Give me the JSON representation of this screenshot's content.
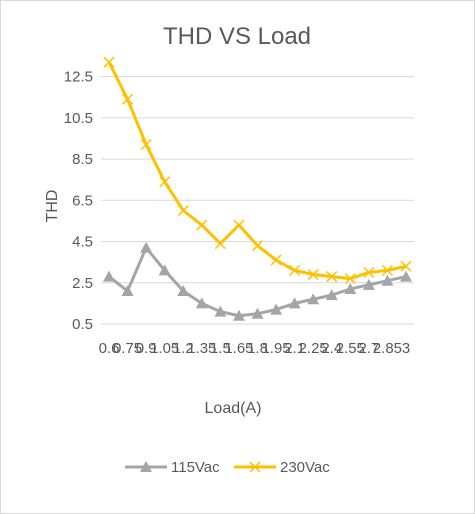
{
  "chart_data": {
    "type": "line",
    "title": "THD VS Load",
    "xlabel": "Load(A)",
    "ylabel": "THD",
    "x": [
      "0.6",
      "0.75",
      "0.9",
      "1.05",
      "1.2",
      "1.35",
      "1.5",
      "1.65",
      "1.8",
      "1.95",
      "2.1",
      "2.25",
      "2.4",
      "2.55",
      "2.7",
      "2.85",
      "3"
    ],
    "y_ticks": [
      "0.5",
      "2.5",
      "4.5",
      "6.5",
      "8.5",
      "10.5",
      "12.5"
    ],
    "ylim": [
      0.5,
      13.5
    ],
    "grid": "horizontal",
    "legend_position": "bottom",
    "series": [
      {
        "name": "115Vac",
        "color": "#a5a5a5",
        "marker": "triangle",
        "values": [
          2.8,
          2.1,
          4.2,
          3.1,
          2.1,
          1.5,
          1.1,
          0.9,
          1.0,
          1.2,
          1.5,
          1.7,
          1.9,
          2.2,
          2.4,
          2.6,
          2.8
        ]
      },
      {
        "name": "230Vac",
        "color": "#ffc000",
        "marker": "x",
        "values": [
          13.2,
          11.4,
          9.2,
          7.4,
          6.0,
          5.3,
          4.4,
          5.3,
          4.3,
          3.6,
          3.1,
          2.9,
          2.8,
          2.7,
          3.0,
          3.1,
          3.3
        ]
      }
    ]
  }
}
